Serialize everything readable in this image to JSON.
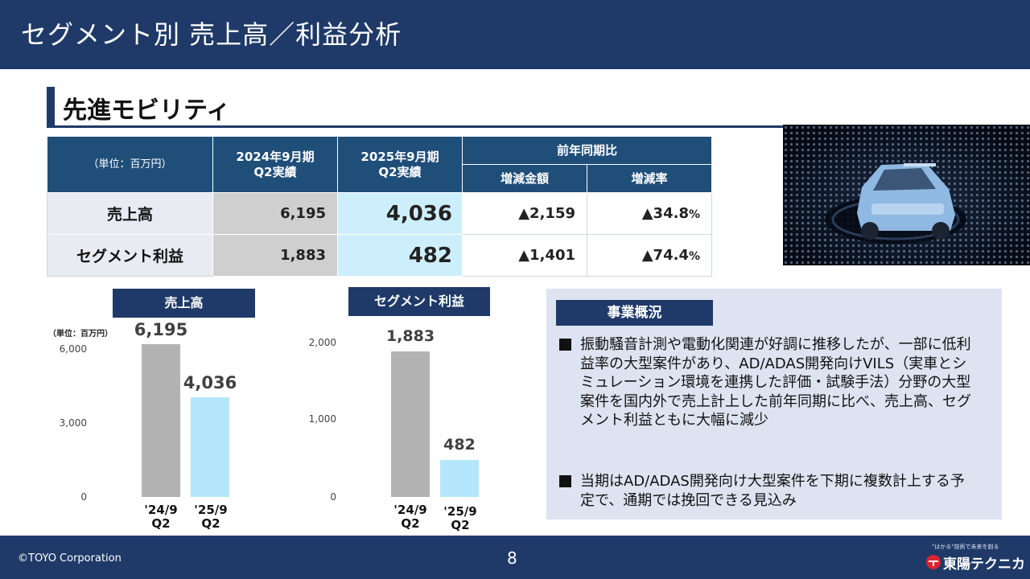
{
  "header": {
    "title": "セグメント別 売上高／利益分析"
  },
  "section": {
    "title": "先進モビリティ"
  },
  "table": {
    "unit": "（単位：百万円）",
    "col_prev": "2024年9月期\nQ2実績",
    "col_curr": "2025年9月期\nQ2実績",
    "col_yoy": "前年同期比",
    "col_diff": "増減金額",
    "col_rate": "増減率",
    "rows": [
      {
        "label": "売上高",
        "prev": "6,195",
        "curr": "4,036",
        "diff": "▲2,159",
        "rate": "▲34.8",
        "rate_unit": "%"
      },
      {
        "label": "セグメント利益",
        "prev": "1,883",
        "curr": "482",
        "diff": "▲1,401",
        "rate": "▲74.4",
        "rate_unit": "%"
      }
    ]
  },
  "charts": {
    "sales": {
      "title": "売上高",
      "unit": "（単位：百万円）",
      "ticks": [
        "6,000",
        "3,000",
        "0"
      ],
      "cat1": "'24/9\nQ2",
      "cat2": "'25/9\nQ2",
      "val1": "6,195",
      "val2": "4,036"
    },
    "profit": {
      "title": "セグメント利益",
      "ticks": [
        "2,000",
        "1,000",
        "0"
      ],
      "cat1": "'24/9\nQ2",
      "cat2": "'25/9\nQ2",
      "val1": "1,883",
      "val2": "482"
    }
  },
  "chart_data": [
    {
      "type": "bar",
      "title": "売上高",
      "categories": [
        "'24/9 Q2",
        "'25/9 Q2"
      ],
      "values": [
        6195,
        4036
      ],
      "ylim": [
        0,
        6000
      ],
      "yticks": [
        0,
        3000,
        6000
      ],
      "colors": [
        "#b3b3b3",
        "#b4e7fb"
      ]
    },
    {
      "type": "bar",
      "title": "セグメント利益",
      "categories": [
        "'24/9 Q2",
        "'25/9 Q2"
      ],
      "values": [
        1883,
        482
      ],
      "ylim": [
        0,
        2000
      ],
      "yticks": [
        0,
        1000,
        2000
      ],
      "colors": [
        "#b3b3b3",
        "#b4e7fb"
      ]
    }
  ],
  "overview": {
    "title": "事業概況",
    "bullets": [
      "振動騒音計測や電動化関連が好調に推移したが、一部に低利益率の大型案件があり、AD/ADAS開発向けVILS（実車とシミュレーション環境を連携した評価・試験手法）分野の大型案件を国内外で売上計上した前年同期に比べ、売上高、セグメント利益ともに大幅に減少",
      "当期はAD/ADAS開発向け大型案件を下期に複数計上する予定で、通期では挽回できる見込み"
    ]
  },
  "footer": {
    "copyright": "©TOYO Corporation",
    "page": "8",
    "logo_tagline": "\"はかる\"技術で未来を創る",
    "logo_name": "東陽テクニカ"
  },
  "colors": {
    "navy": "#1f3a68",
    "bar_prev": "#b3b3b3",
    "bar_curr": "#b4e7fb"
  }
}
